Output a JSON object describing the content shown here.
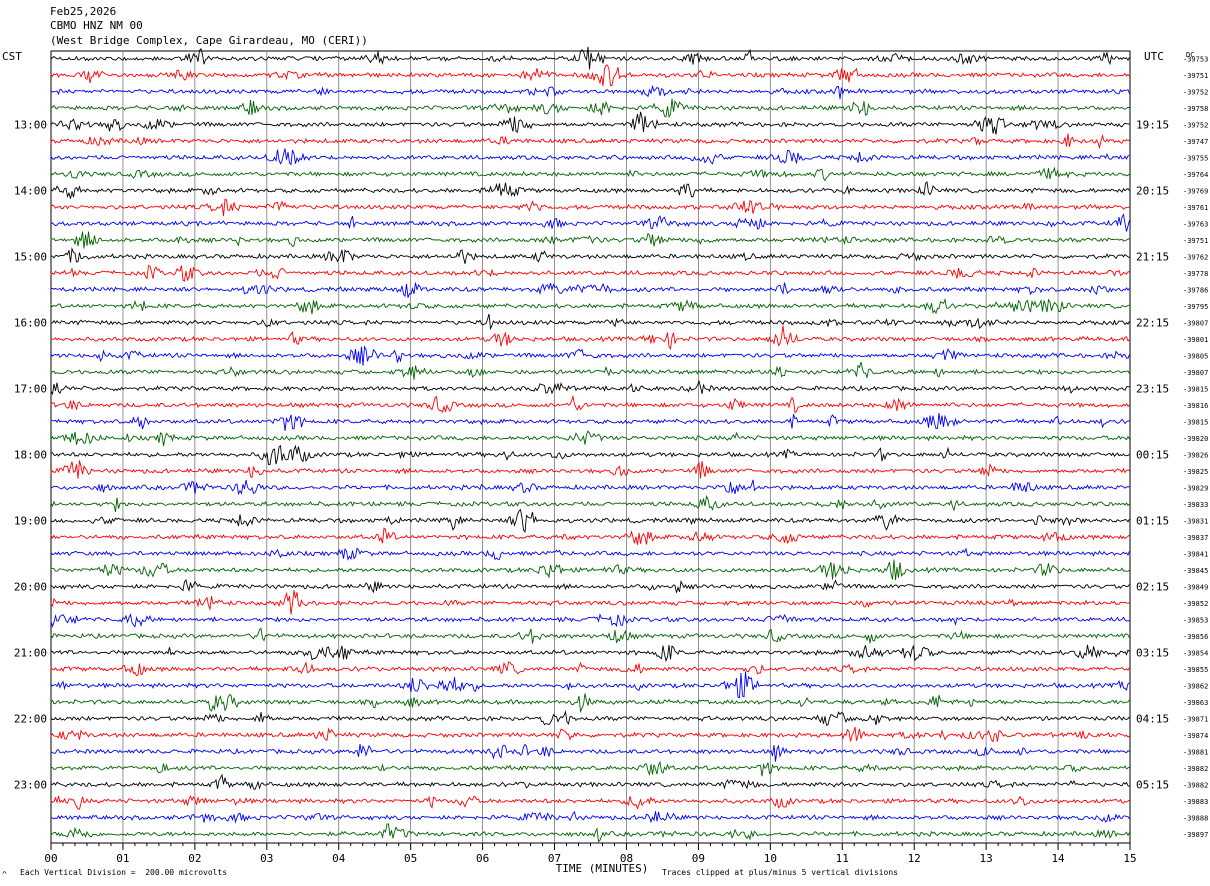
{
  "header": {
    "date": "Feb25,2026",
    "station": "CBMO HNZ NM 00",
    "location": "(West Bridge Complex, Cape Girardeau, MO (CERI))"
  },
  "left_tz": "CST",
  "right_tz": "UTC",
  "right_corner_label": "DC",
  "footer": {
    "scale_note": "Each Vertical Division =  200.00 microvolts",
    "clip_note": "Traces clipped at plus/minus 5 vertical divisions",
    "corner_mark": "^"
  },
  "colors": {
    "trace_cycle": [
      "#000000",
      "#ff0000",
      "#0000ff",
      "#006400"
    ],
    "grid": "#000000"
  },
  "chart_data": {
    "type": "helicorder",
    "xlabel": "TIME (MINUTES)",
    "x_ticks": [
      "00",
      "01",
      "02",
      "03",
      "04",
      "05",
      "06",
      "07",
      "08",
      "09",
      "10",
      "11",
      "12",
      "13",
      "14",
      "15"
    ],
    "xlim": [
      0,
      15
    ],
    "left_hour_labels": [
      "13:00",
      "14:00",
      "15:00",
      "16:00",
      "17:00",
      "18:00",
      "19:00",
      "20:00",
      "21:00",
      "22:00",
      "23:00"
    ],
    "right_hour_labels": [
      "19:15",
      "20:15",
      "21:15",
      "22:15",
      "23:15",
      "00:15",
      "01:15",
      "02:15",
      "03:15",
      "04:15",
      "05:15"
    ],
    "trace_dc_offsets": [
      -39753,
      -39751,
      -39752,
      -39758,
      -39752,
      -39747,
      -39755,
      -39764,
      -39769,
      -39761,
      -39763,
      -39751,
      -39762,
      -39778,
      -39786,
      -39795,
      -39807,
      -39801,
      -39805,
      -39807,
      -39815,
      -39816,
      -39815,
      -39820,
      -39826,
      -39825,
      -39829,
      -39833,
      -39831,
      -39837,
      -39841,
      -39845,
      -39849,
      -39852,
      -39853,
      -39856,
      -39854,
      -39855,
      -39862,
      -39863,
      -39871,
      -39874,
      -39881,
      -39882,
      -39882,
      -39883,
      -39888,
      -39897
    ]
  }
}
